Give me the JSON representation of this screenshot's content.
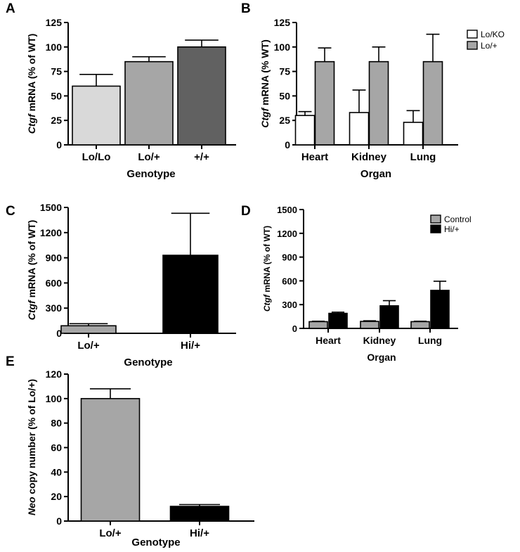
{
  "chart_data": [
    {
      "panel": "A",
      "type": "bar",
      "categories": [
        "Lo/Lo",
        "Lo/+",
        "+/+"
      ],
      "values": [
        60,
        85,
        100
      ],
      "errors": [
        12,
        5,
        7
      ],
      "colors": [
        "#d9d9d9",
        "#a6a6a6",
        "#616161"
      ],
      "xlabel": "Genotype",
      "ylabel_italic": "Ctgf",
      "ylabel_rest": " mRNA (% of WT)",
      "ylim": [
        0,
        125
      ],
      "yticks": [
        "0",
        "25",
        "50",
        "75",
        "100",
        "125"
      ],
      "grid": false
    },
    {
      "panel": "B",
      "type": "bar",
      "categories": [
        "Heart",
        "Kidney",
        "Lung"
      ],
      "series": [
        {
          "name": "Lo/KO",
          "color": "#ffffff",
          "values": [
            30,
            33,
            23
          ],
          "errors": [
            4,
            23,
            12
          ]
        },
        {
          "name": "Lo/+",
          "color": "#a6a6a6",
          "values": [
            85,
            85,
            85
          ],
          "errors": [
            14,
            15,
            28
          ]
        }
      ],
      "xlabel": "Organ",
      "ylabel_italic": "Ctgf",
      "ylabel_rest": " mRNA (% WT)",
      "ylim": [
        0,
        125
      ],
      "yticks": [
        "0",
        "25",
        "50",
        "75",
        "100",
        "125"
      ],
      "legend": "top-right",
      "grid": false
    },
    {
      "panel": "C",
      "type": "bar",
      "categories": [
        "Lo/+",
        "Hi/+"
      ],
      "values": [
        90,
        930
      ],
      "errors": [
        25,
        500
      ],
      "colors": [
        "#a6a6a6",
        "#000000"
      ],
      "xlabel": "Genotype",
      "ylabel_italic": "Ctgf",
      "ylabel_rest": " mRNA (% of WT)",
      "ylim": [
        0,
        1500
      ],
      "yticks": [
        "0",
        "300",
        "600",
        "900",
        "1200",
        "1500"
      ],
      "grid": false
    },
    {
      "panel": "D",
      "type": "bar",
      "categories": [
        "Heart",
        "Kidney",
        "Lung"
      ],
      "series": [
        {
          "name": "Control",
          "color": "#a6a6a6",
          "values": [
            85,
            88,
            85
          ],
          "errors": [
            5,
            8,
            5
          ]
        },
        {
          "name": "Hi/+",
          "color": "#000000",
          "values": [
            190,
            285,
            480
          ],
          "errors": [
            15,
            65,
            115
          ]
        }
      ],
      "xlabel": "Organ",
      "ylabel_italic": "Ctgf",
      "ylabel_rest": " mRNA  (% of WT)",
      "ylim": [
        0,
        1500
      ],
      "yticks": [
        "0",
        "300",
        "600",
        "900",
        "1200",
        "1500"
      ],
      "legend": "top-right",
      "grid": false
    },
    {
      "panel": "E",
      "type": "bar",
      "categories": [
        "Lo/+",
        "Hi/+"
      ],
      "values": [
        100,
        12
      ],
      "errors": [
        8,
        1.5
      ],
      "colors": [
        "#a6a6a6",
        "#000000"
      ],
      "xlabel": "Genotype",
      "ylabel_italic": "Neo",
      "ylabel_rest": " copy number (% of Lo/+)",
      "ylim": [
        0,
        120
      ],
      "yticks": [
        "0",
        "20",
        "40",
        "60",
        "80",
        "100",
        "120"
      ],
      "grid": false
    }
  ]
}
